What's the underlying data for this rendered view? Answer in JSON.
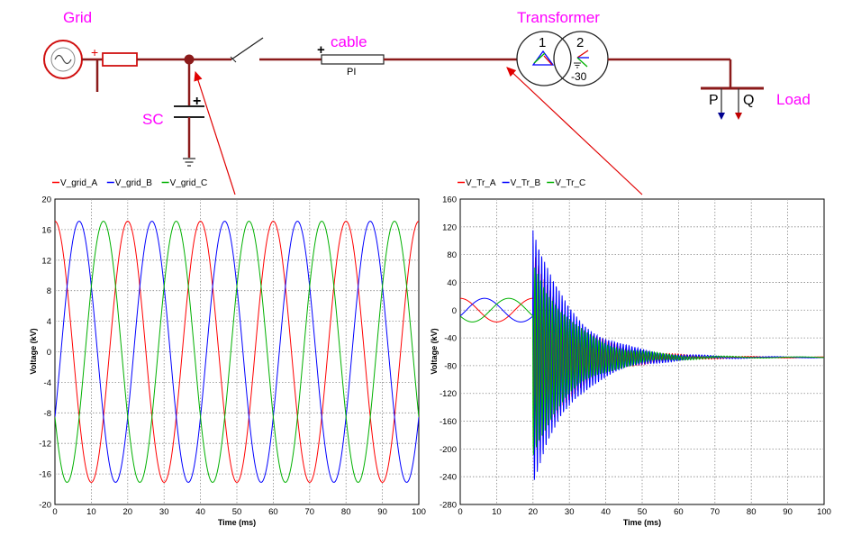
{
  "diagram": {
    "grid_label": "Grid",
    "sc_label": "SC",
    "cable_label": "cable",
    "pi_label": "PI",
    "transformer_label": "Transformer",
    "winding1": "1",
    "winding2": "2",
    "phase_shift": "-30",
    "p_label": "P",
    "q_label": "Q",
    "load_label": "Load",
    "plus": "+",
    "colors": {
      "wire": "#8b1a1a",
      "label": "#ff00ff",
      "arrow": "#e00000"
    }
  },
  "chart_data": [
    {
      "type": "line",
      "legend": [
        "V_grid_A",
        "V_grid_B",
        "V_grid_C"
      ],
      "legend_placement": "top-left",
      "xlabel": "Time (ms)",
      "ylabel": "Voltage (kV)",
      "xlim": [
        0,
        100
      ],
      "ylim": [
        -20,
        20
      ],
      "xticks": [
        0,
        10,
        20,
        30,
        40,
        50,
        60,
        70,
        80,
        90,
        100
      ],
      "yticks": [
        -20,
        -16,
        -12,
        -8,
        -4,
        0,
        4,
        8,
        12,
        16,
        20
      ],
      "grid": true,
      "series": [
        {
          "name": "V_grid_A",
          "color": "#ff0000",
          "amplitude_kV": 17.1,
          "frequency_Hz": 50,
          "phase_deg": 90
        },
        {
          "name": "V_grid_B",
          "color": "#0000ff",
          "amplitude_kV": 17.1,
          "frequency_Hz": 50,
          "phase_deg": -30
        },
        {
          "name": "V_grid_C",
          "color": "#00b000",
          "amplitude_kV": 17.1,
          "frequency_Hz": 50,
          "phase_deg": 210
        }
      ]
    },
    {
      "type": "line",
      "legend": [
        "V_Tr_A",
        "V_Tr_B",
        "V_Tr_C"
      ],
      "legend_placement": "top-left",
      "xlabel": "Time (ms)",
      "ylabel": "Voltage (kV)",
      "xlim": [
        0,
        100
      ],
      "ylim": [
        -280,
        160
      ],
      "xticks": [
        0,
        10,
        20,
        30,
        40,
        50,
        60,
        70,
        80,
        90,
        100
      ],
      "yticks": [
        -280,
        -240,
        -200,
        -160,
        -120,
        -80,
        -40,
        0,
        40,
        80,
        120,
        160
      ],
      "grid": true,
      "switching_time_ms": 20,
      "steady_state_kV": -68,
      "peak_kV": 122,
      "trough_kV": -252,
      "series": [
        {
          "name": "V_Tr_A",
          "color": "#ff0000",
          "amplitude_kV": 17,
          "frequency_Hz": 50,
          "phase_deg": 90
        },
        {
          "name": "V_Tr_B",
          "color": "#0000ff",
          "amplitude_kV": 17,
          "frequency_Hz": 50,
          "phase_deg": -30
        },
        {
          "name": "V_Tr_C",
          "color": "#00b000",
          "amplitude_kV": 17,
          "frequency_Hz": 50,
          "phase_deg": 210
        }
      ]
    }
  ]
}
